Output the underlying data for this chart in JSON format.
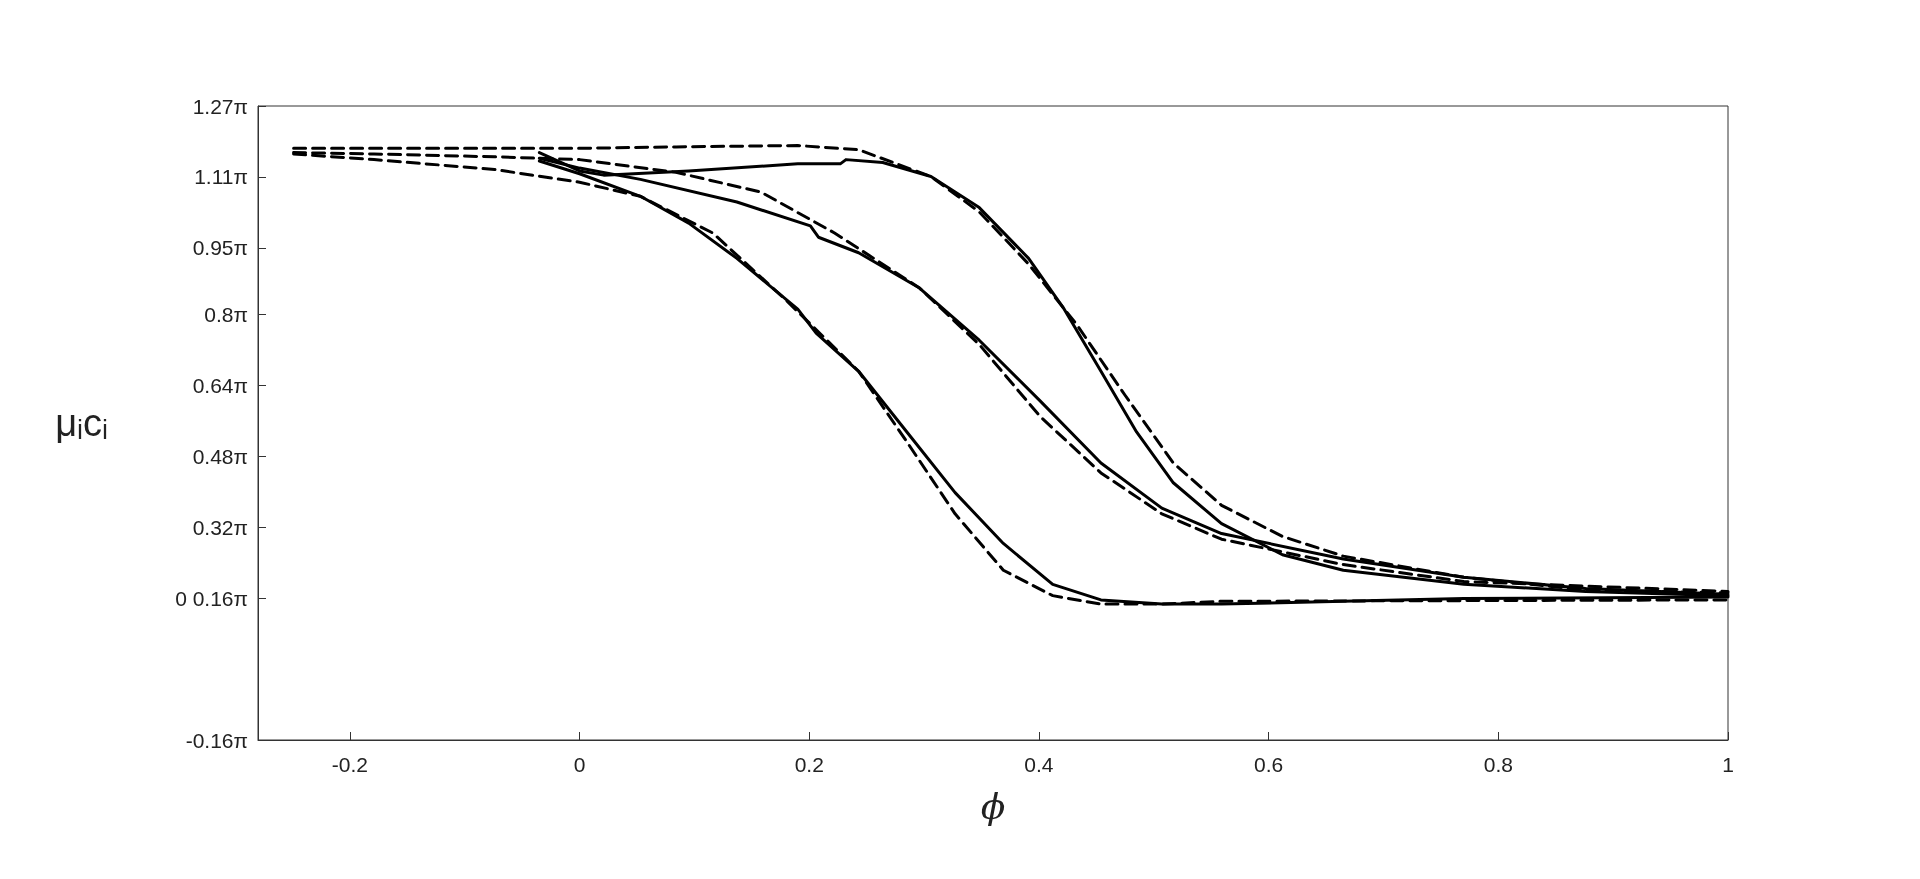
{
  "chart_data": {
    "type": "line",
    "xlabel": "ϕ",
    "ylabel": "μᵢcᵢ",
    "xlim": [
      -0.28,
      1
    ],
    "xticks": [
      -0.2,
      0,
      0.2,
      0.4,
      0.6,
      0.8,
      1
    ],
    "ylim": [
      -0.503,
      3.99
    ],
    "yticks": [
      {
        "value": -0.503,
        "label": "-0.16π"
      },
      {
        "value": 0.503,
        "label": "0 0.16π"
      },
      {
        "value": 1.005,
        "label": "0.32π"
      },
      {
        "value": 1.508,
        "label": "0.48π"
      },
      {
        "value": 2.011,
        "label": "0.64π"
      },
      {
        "value": 2.513,
        "label": "0.8π"
      },
      {
        "value": 2.985,
        "label": "0.95π"
      },
      {
        "value": 3.487,
        "label": "1.11π"
      },
      {
        "value": 3.99,
        "label": "1.27π"
      }
    ],
    "grid": false,
    "marker": "none",
    "series": [
      {
        "color": "#000000",
        "line_style": "solid",
        "x": [
          -0.035,
          0,
          0.021,
          0.095,
          0.19,
          0.227,
          0.232,
          0.264,
          0.306,
          0.348,
          0.391,
          0.422,
          0.454,
          0.485,
          0.517,
          0.559,
          0.612,
          0.665,
          0.77,
          0.876,
          1
        ],
        "values": [
          3.66,
          3.53,
          3.5,
          3.53,
          3.58,
          3.58,
          3.61,
          3.59,
          3.49,
          3.27,
          2.91,
          2.55,
          2.11,
          1.68,
          1.32,
          1.03,
          0.81,
          0.7,
          0.6,
          0.55,
          0.52
        ]
      },
      {
        "color": "#000000",
        "line_style": "solid",
        "x": [
          -0.035,
          0,
          0.053,
          0.137,
          0.201,
          0.208,
          0.243,
          0.296,
          0.348,
          0.401,
          0.454,
          0.507,
          0.559,
          0.665,
          0.77,
          0.876,
          1
        ],
        "values": [
          3.62,
          3.55,
          3.47,
          3.31,
          3.14,
          3.06,
          2.95,
          2.7,
          2.33,
          1.9,
          1.46,
          1.14,
          0.96,
          0.78,
          0.65,
          0.57,
          0.53
        ]
      },
      {
        "color": "#000000",
        "line_style": "solid",
        "x": [
          -0.035,
          0,
          0.053,
          0.095,
          0.137,
          0.19,
          0.206,
          0.243,
          0.285,
          0.327,
          0.369,
          0.412,
          0.454,
          0.507,
          0.559,
          0.665,
          0.77,
          1
        ],
        "values": [
          3.6,
          3.51,
          3.35,
          3.16,
          2.91,
          2.55,
          2.38,
          2.11,
          1.68,
          1.25,
          0.89,
          0.6,
          0.49,
          0.46,
          0.46,
          0.48,
          0.5,
          0.51
        ]
      },
      {
        "color": "#000000",
        "line_style": "dashed",
        "x": [
          -0.249,
          -0.179,
          -0.074,
          0,
          0.084,
          0.19,
          0.243,
          0.306,
          0.348,
          0.391,
          0.433,
          0.475,
          0.517,
          0.559,
          0.612,
          0.665,
          0.77,
          0.876,
          1
        ],
        "values": [
          3.69,
          3.69,
          3.69,
          3.69,
          3.7,
          3.71,
          3.68,
          3.49,
          3.24,
          2.87,
          2.44,
          1.94,
          1.46,
          1.16,
          0.94,
          0.8,
          0.65,
          0.56,
          0.54
        ]
      },
      {
        "color": "#000000",
        "line_style": "dashed",
        "x": [
          -0.249,
          -0.179,
          -0.074,
          0,
          0.084,
          0.158,
          0.222,
          0.296,
          0.348,
          0.401,
          0.454,
          0.507,
          0.559,
          0.665,
          0.77,
          1
        ],
        "values": [
          3.66,
          3.65,
          3.63,
          3.61,
          3.52,
          3.38,
          3.09,
          2.7,
          2.3,
          1.79,
          1.39,
          1.1,
          0.92,
          0.74,
          0.62,
          0.55
        ]
      },
      {
        "color": "#000000",
        "line_style": "dashed",
        "x": [
          -0.249,
          -0.179,
          -0.074,
          0,
          0.053,
          0.116,
          0.179,
          0.243,
          0.285,
          0.327,
          0.369,
          0.412,
          0.454,
          0.507,
          0.559,
          1
        ],
        "values": [
          3.65,
          3.61,
          3.54,
          3.45,
          3.35,
          3.09,
          2.62,
          2.11,
          1.61,
          1.1,
          0.7,
          0.52,
          0.46,
          0.46,
          0.48,
          0.49
        ]
      }
    ]
  }
}
